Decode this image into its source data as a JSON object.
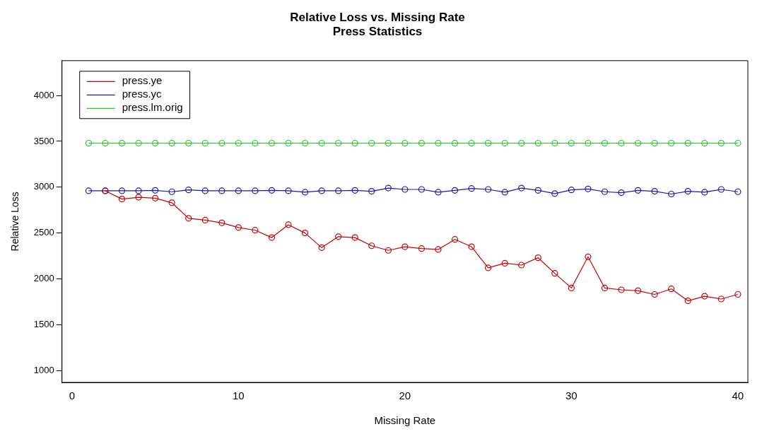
{
  "chart_data": {
    "type": "line",
    "title": "Relative Loss vs. Missing Rate",
    "subtitle": "Press Statistics",
    "xlabel": "Missing Rate",
    "ylabel": "Relative Loss",
    "x": [
      1,
      2,
      3,
      4,
      5,
      6,
      7,
      8,
      9,
      10,
      11,
      12,
      13,
      14,
      15,
      16,
      17,
      18,
      19,
      20,
      21,
      22,
      23,
      24,
      25,
      26,
      27,
      28,
      29,
      30,
      31,
      32,
      33,
      34,
      35,
      36,
      37,
      38,
      39,
      40
    ],
    "xlim": [
      -0.6,
      40.6
    ],
    "xticks": [
      0,
      10,
      20,
      30,
      40
    ],
    "ylim": [
      870,
      4380
    ],
    "yticks": [
      1000,
      1500,
      2000,
      2500,
      3000,
      3500,
      4000
    ],
    "grid": false,
    "legend": "top left",
    "marker": "circle",
    "series": [
      {
        "name": "press.ye",
        "color": "#cc0000",
        "values": [
          null,
          2960,
          2870,
          2890,
          2880,
          2830,
          2660,
          2640,
          2610,
          2560,
          2530,
          2450,
          2590,
          2500,
          2340,
          2460,
          2450,
          2360,
          2310,
          2350,
          2330,
          2320,
          2430,
          2350,
          2120,
          2170,
          2150,
          2230,
          2060,
          1900,
          2240,
          1900,
          1880,
          1870,
          1830,
          1890,
          1760,
          1810,
          1780,
          1830
        ]
      },
      {
        "name": "press.yc",
        "color": "#1a1aaa",
        "values": [
          2960,
          2960,
          2960,
          2960,
          2965,
          2950,
          2970,
          2960,
          2960,
          2960,
          2960,
          2965,
          2960,
          2945,
          2960,
          2960,
          2965,
          2955,
          2990,
          2975,
          2975,
          2945,
          2965,
          2985,
          2975,
          2945,
          2990,
          2965,
          2930,
          2970,
          2980,
          2950,
          2940,
          2965,
          2955,
          2925,
          2955,
          2945,
          2975,
          2950
        ]
      },
      {
        "name": "press.lm.orig",
        "color": "#22cc22",
        "values": [
          3480,
          3480,
          3480,
          3480,
          3480,
          3480,
          3480,
          3480,
          3480,
          3480,
          3480,
          3480,
          3480,
          3480,
          3480,
          3480,
          3480,
          3480,
          3480,
          3480,
          3480,
          3480,
          3480,
          3480,
          3480,
          3480,
          3480,
          3480,
          3480,
          3480,
          3480,
          3480,
          3480,
          3480,
          3480,
          3480,
          3480,
          3480,
          3480,
          3480
        ]
      }
    ]
  }
}
